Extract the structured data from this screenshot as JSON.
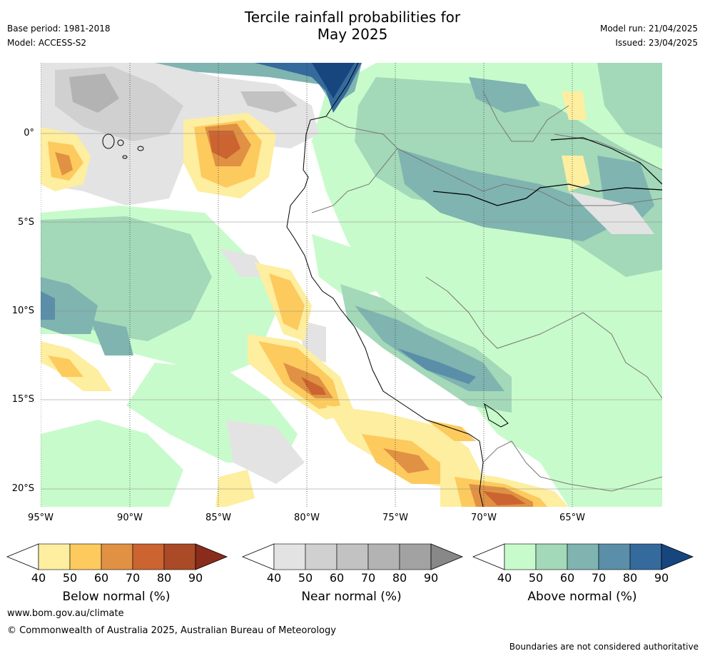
{
  "title_line1": "Tercile rainfall probabilities for",
  "title_line2": "May 2025",
  "base_period": "Base period: 1981-2018",
  "model": "Model: ACCESS-S2",
  "model_run": "Model run: 21/04/2025",
  "issued": "Issued: 23/04/2025",
  "lat_labels": [
    "0°",
    "5°S",
    "10°S",
    "15°S",
    "20°S"
  ],
  "lon_labels": [
    "95°W",
    "90°W",
    "85°W",
    "80°W",
    "75°W",
    "70°W",
    "65°W"
  ],
  "colorbars": [
    {
      "title": "Below normal (%)",
      "ticks": [
        "40",
        "50",
        "60",
        "70",
        "80",
        "90"
      ],
      "colors": [
        "#ffffff",
        "#fdeea0",
        "#fdca5e",
        "#e09143",
        "#cb6431",
        "#ab4a27",
        "#8a2c1c"
      ]
    },
    {
      "title": "Near normal (%)",
      "ticks": [
        "40",
        "50",
        "60",
        "70",
        "80",
        "90"
      ],
      "colors": [
        "#ffffff",
        "#e3e3e3",
        "#d0d0d0",
        "#c2c2c2",
        "#b3b3b3",
        "#a2a2a2",
        "#888888"
      ]
    },
    {
      "title": "Above normal (%)",
      "ticks": [
        "40",
        "50",
        "60",
        "70",
        "80",
        "90"
      ],
      "colors": [
        "#ffffff",
        "#c8fbcb",
        "#a3d8b8",
        "#7fb4b0",
        "#5b8ea8",
        "#356a9c",
        "#17467f"
      ]
    }
  ],
  "footer_url": "www.bom.gov.au/climate",
  "footer_copyright": "© Commonwealth of Australia 2025, Australian Bureau of Meteorology",
  "disclaimer": "Boundaries are not considered authoritative"
}
